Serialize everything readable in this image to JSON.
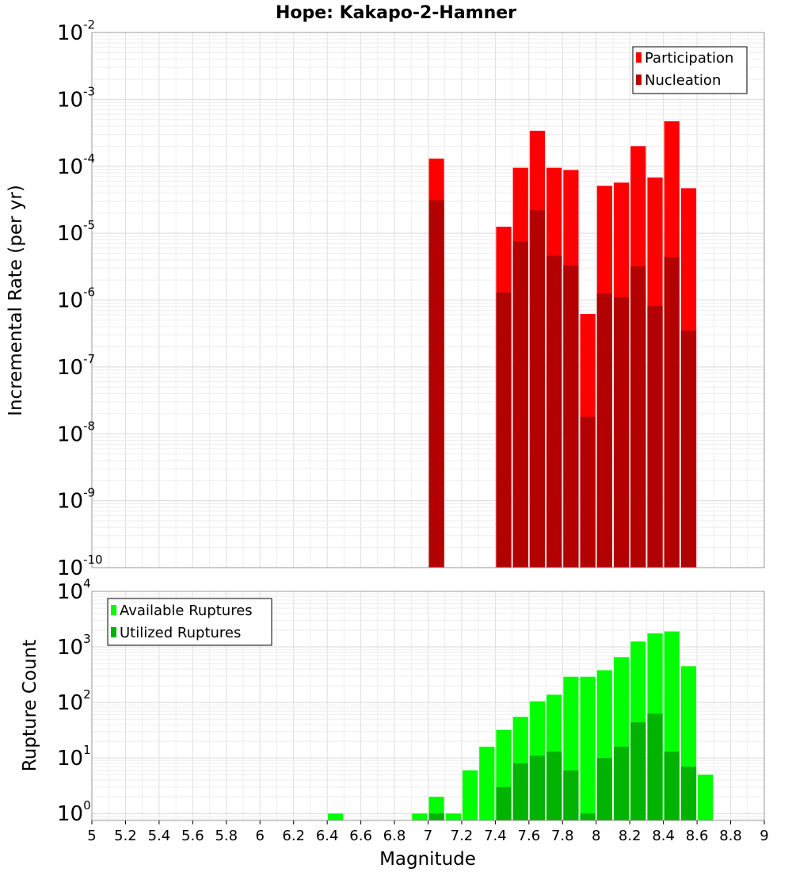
{
  "chart_data": [
    {
      "type": "bar",
      "title": "Hope: Kakapo-2-Hamner",
      "ylabel": "Incremental Rate (per yr)",
      "yscale": "log",
      "ylim": [
        1e-10,
        0.01
      ],
      "xlim": [
        5,
        9
      ],
      "y_tick_exponents": [
        "-10",
        "-9",
        "-8",
        "-7",
        "-6",
        "-5",
        "-4",
        "-3",
        "-2"
      ],
      "grid": true,
      "legend_position": "top-right",
      "series": [
        {
          "name": "Participation",
          "color": "#ff0000",
          "x": [
            7.05,
            7.45,
            7.55,
            7.65,
            7.75,
            7.85,
            7.95,
            8.05,
            8.15,
            8.25,
            8.35,
            8.45,
            8.55
          ],
          "values": [
            0.00013,
            1.25e-05,
            9.5e-05,
            0.00034,
            9.5e-05,
            8.8e-05,
            6.2e-07,
            5.1e-05,
            5.7e-05,
            0.0002,
            6.8e-05,
            0.00047,
            4.7e-05
          ]
        },
        {
          "name": "Nucleation",
          "color": "#b30000",
          "x": [
            7.05,
            7.45,
            7.55,
            7.65,
            7.75,
            7.85,
            7.95,
            8.05,
            8.15,
            8.25,
            8.35,
            8.45,
            8.55
          ],
          "values": [
            3.1e-05,
            1.3e-06,
            7.5e-06,
            2.2e-05,
            4.6e-06,
            3.3e-06,
            1.8e-08,
            1.25e-06,
            1.1e-06,
            3.2e-06,
            8.2e-07,
            4.4e-06,
            3.5e-07
          ]
        }
      ]
    },
    {
      "type": "bar",
      "xlabel": "Magnitude",
      "ylabel": "Rupture Count",
      "yscale": "log",
      "ylim": [
        0.75,
        10000
      ],
      "xlim": [
        5,
        9
      ],
      "x_ticks": [
        "5",
        "5.2",
        "5.4",
        "5.6",
        "5.8",
        "6",
        "6.2",
        "6.4",
        "6.6",
        "6.8",
        "7",
        "7.2",
        "7.4",
        "7.6",
        "7.8",
        "8",
        "8.2",
        "8.4",
        "8.6",
        "8.8",
        "9"
      ],
      "y_tick_exponents": [
        "0",
        "1",
        "2",
        "3",
        "4"
      ],
      "grid": true,
      "legend_position": "top-left",
      "series": [
        {
          "name": "Available Ruptures",
          "color": "#00ff00",
          "x": [
            6.45,
            6.95,
            7.05,
            7.15,
            7.25,
            7.35,
            7.45,
            7.55,
            7.65,
            7.75,
            7.85,
            7.95,
            8.05,
            8.15,
            8.25,
            8.35,
            8.45,
            8.55,
            8.65
          ],
          "values": [
            1,
            1,
            2,
            1,
            6,
            16,
            32,
            55,
            105,
            138,
            290,
            290,
            380,
            650,
            1250,
            1750,
            1900,
            450,
            5
          ]
        },
        {
          "name": "Utilized Ruptures",
          "color": "#00b300",
          "x": [
            7.05,
            7.45,
            7.55,
            7.65,
            7.75,
            7.85,
            7.95,
            8.05,
            8.15,
            8.25,
            8.35,
            8.45,
            8.55
          ],
          "values": [
            1,
            3,
            8,
            11,
            13,
            6,
            1,
            10,
            16,
            44,
            63,
            13,
            7
          ]
        }
      ]
    }
  ]
}
